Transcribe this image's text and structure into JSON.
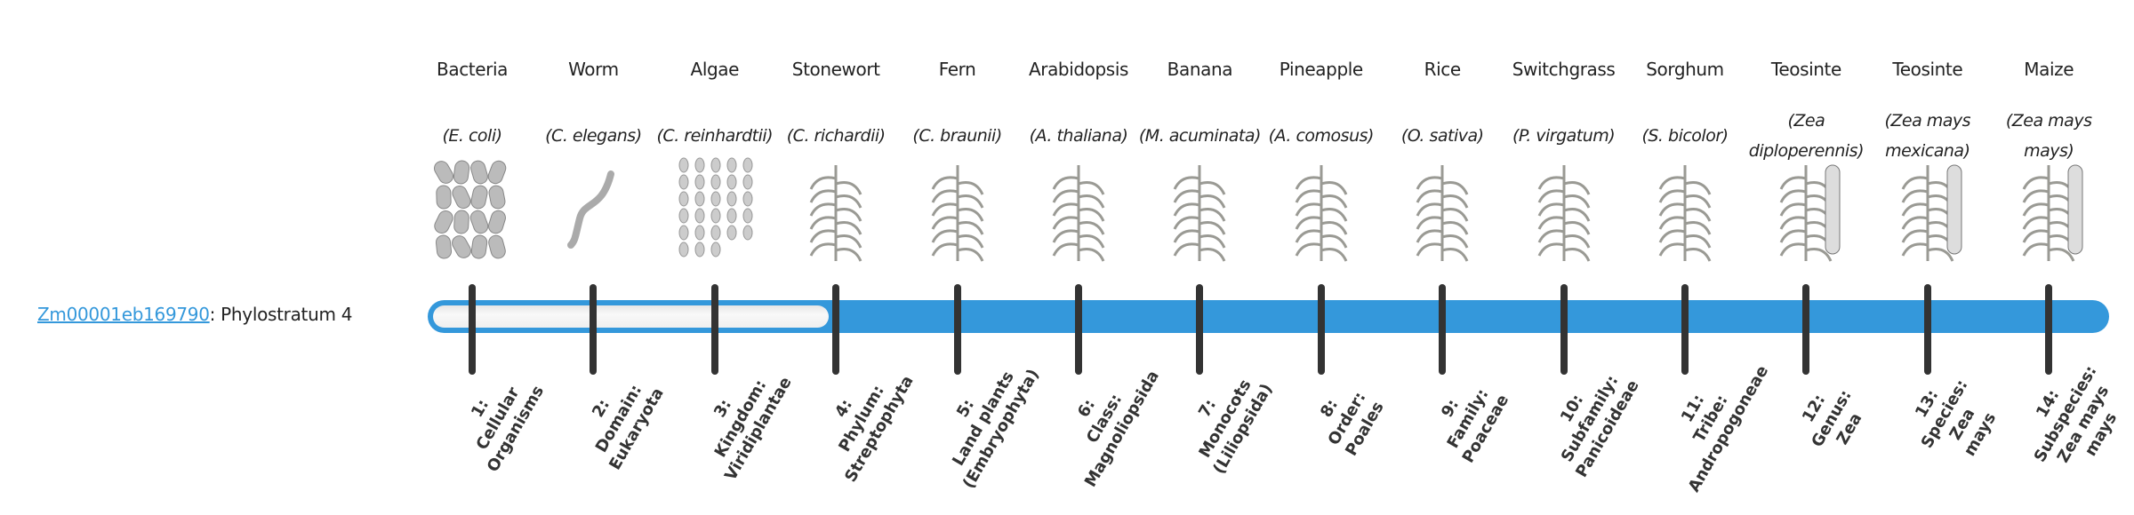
{
  "gene": {
    "id": "Zm00001eb169790",
    "suffix": ": Phylostratum 4",
    "phylostratum": 4
  },
  "colors": {
    "bar": "#3498db",
    "tick": "#333333",
    "link": "#3498db"
  },
  "organisms": [
    {
      "name": "Bacteria",
      "scientific": "(E. coli)",
      "icon": "bacteria-icon"
    },
    {
      "name": "Worm",
      "scientific": "(C. elegans)",
      "icon": "worm-icon"
    },
    {
      "name": "Algae",
      "scientific": "(C. reinhardtii)",
      "icon": "algae-icon"
    },
    {
      "name": "Stonewort",
      "scientific": "(C. richardii)",
      "icon": "stonewort-icon"
    },
    {
      "name": "Fern",
      "scientific": "(C. braunii)",
      "icon": "fern-icon"
    },
    {
      "name": "Arabidopsis",
      "scientific": "(A. thaliana)",
      "icon": "arabidopsis-icon"
    },
    {
      "name": "Banana",
      "scientific": "(M. acuminata)",
      "icon": "banana-icon"
    },
    {
      "name": "Pineapple",
      "scientific": "(A. comosus)",
      "icon": "pineapple-icon"
    },
    {
      "name": "Rice",
      "scientific": "(O. sativa)",
      "icon": "rice-icon"
    },
    {
      "name": "Switchgrass",
      "scientific": "(P. virgatum)",
      "icon": "switchgrass-icon"
    },
    {
      "name": "Sorghum",
      "scientific": "(S. bicolor)",
      "icon": "sorghum-icon"
    },
    {
      "name": "Teosinte",
      "scientific": "(Zea diploperennis)",
      "icon": "teosinte-icon"
    },
    {
      "name": "Teosinte",
      "scientific": "(Zea mays mexicana)",
      "icon": "teosinte-icon"
    },
    {
      "name": "Maize",
      "scientific": "(Zea mays mays)",
      "icon": "maize-icon"
    }
  ],
  "strata": [
    [
      "1:",
      "Cellular",
      "Organisms"
    ],
    [
      "2:",
      "Domain:",
      "Eukaryota"
    ],
    [
      "3:",
      "Kingdom:",
      "Viridiplantae"
    ],
    [
      "4:",
      "Phylum:",
      "Streptophyta"
    ],
    [
      "5:",
      "Land plants",
      "(Embryophyta)"
    ],
    [
      "6:",
      "Class:",
      "Magnoliopsida"
    ],
    [
      "7:",
      "Monocots",
      "(Liliopsida)"
    ],
    [
      "8:",
      "Order:",
      "Poales"
    ],
    [
      "9:",
      "Family:",
      "Poaceae"
    ],
    [
      "10:",
      "Subfamily:",
      "Panicoideae"
    ],
    [
      "11:",
      "Tribe:",
      "Andropogoneae"
    ],
    [
      "12:",
      "Genus:",
      "Zea"
    ],
    [
      "13:",
      "Species:",
      "Zea",
      "mays"
    ],
    [
      "14:",
      "Subspecies:",
      "Zea mays",
      "mays"
    ]
  ]
}
